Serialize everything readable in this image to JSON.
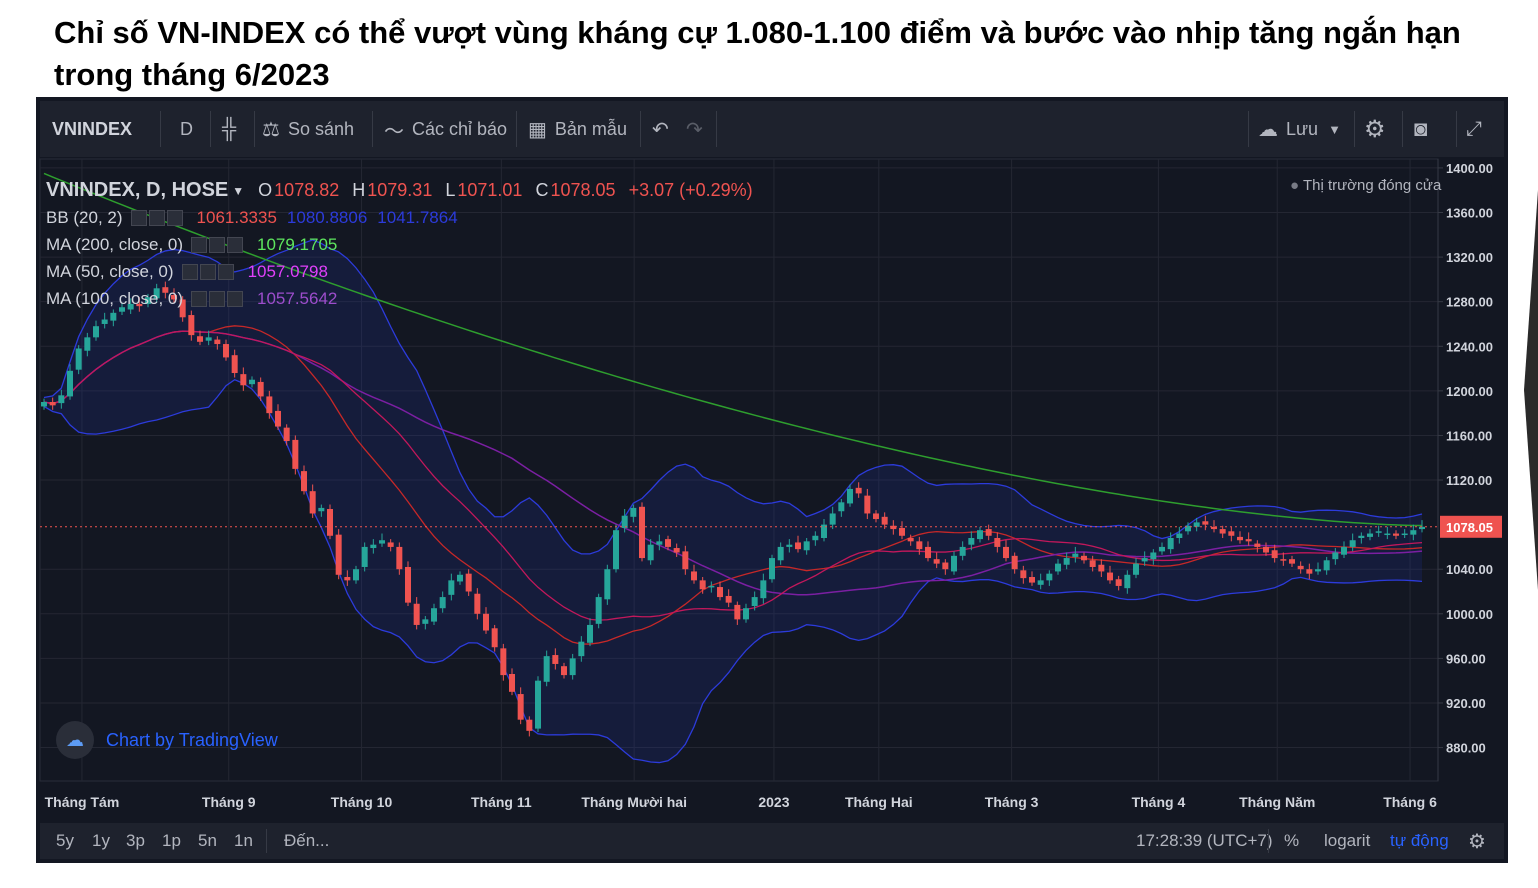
{
  "headline": "Chỉ số VN-INDEX có thể vượt vùng kháng cự 1.080-1.100 điểm và bước vào nhịp tăng ngắn hạn trong tháng 6/2023",
  "toolbar": {
    "symbol": "VNINDEX",
    "interval": "D",
    "compare_label": "So sánh",
    "indicators_label": "Các chỉ báo",
    "templates_label": "Bản mẫu",
    "save_label": "Lưu"
  },
  "legend": {
    "main_title": "VNINDEX, D, HOSE",
    "open_key": "O",
    "open": "1078.82",
    "high_key": "H",
    "high": "1079.31",
    "low_key": "L",
    "low": "1071.01",
    "close_key": "C",
    "close": "1078.05",
    "change": "+3.07 (+0.29%)",
    "bb_label": "BB (20, 2)",
    "bb_values": [
      "1061.3335",
      "1080.8806",
      "1041.7864"
    ],
    "ma200_label": "MA (200, close, 0)",
    "ma200_value": "1079.1705",
    "ma50_label": "MA (50, close, 0)",
    "ma50_value": "1057.0798",
    "ma100_label": "MA (100, close, 0)",
    "ma100_value": "1057.5642"
  },
  "market_status": "Thị trường đóng cửa",
  "watermark": "Chart by TradingView",
  "bottom": {
    "ranges": [
      "5y",
      "1y",
      "3p",
      "1p",
      "5n",
      "1n"
    ],
    "goto": "Đến...",
    "time": "17:28:39 (UTC+7)",
    "percent": "%",
    "log": "logarit",
    "auto": "tự động"
  },
  "colors": {
    "up": "#26a69a",
    "down": "#ef5350",
    "ma200": "#2e9e2e",
    "ma50": "#c2185b",
    "ma100": "#7b1fa2",
    "bb_band": "#2c3bdb",
    "bb_basis": "#c62828",
    "price_tag": "#ef5350"
  },
  "chart_data": {
    "type": "candlestick",
    "title": "VNINDEX, D, HOSE",
    "y_ticks": [
      1400,
      1360,
      1320,
      1280,
      1240,
      1200,
      1160,
      1120,
      1078.05,
      1040,
      1000,
      960,
      920,
      880
    ],
    "ylim": [
      850,
      1408
    ],
    "x_ticks": [
      "Tháng Tám",
      "Tháng 9",
      "Tháng 10",
      "Tháng 11",
      "Tháng Mười hai",
      "2023",
      "Tháng Hai",
      "Tháng 3",
      "Tháng 4",
      "Tháng Năm",
      "Tháng 6"
    ],
    "current_price": 1078.05,
    "closes": [
      1190,
      1187,
      1196,
      1218,
      1238,
      1248,
      1258,
      1264,
      1270,
      1275,
      1278,
      1276,
      1284,
      1292,
      1288,
      1282,
      1266,
      1250,
      1244,
      1248,
      1242,
      1230,
      1216,
      1205,
      1210,
      1195,
      1180,
      1168,
      1155,
      1130,
      1110,
      1090,
      1095,
      1070,
      1035,
      1030,
      1040,
      1060,
      1062,
      1066,
      1060,
      1040,
      1010,
      990,
      995,
      1005,
      1015,
      1030,
      1035,
      1020,
      1000,
      985,
      970,
      945,
      930,
      905,
      895,
      940,
      962,
      955,
      945,
      960,
      975,
      990,
      1015,
      1040,
      1075,
      1088,
      1095,
      1050,
      1062,
      1065,
      1060,
      1055,
      1040,
      1030,
      1022,
      1025,
      1015,
      1010,
      995,
      1005,
      1015,
      1030,
      1050,
      1060,
      1062,
      1058,
      1065,
      1070,
      1080,
      1090,
      1100,
      1112,
      1108,
      1090,
      1085,
      1080,
      1076,
      1070,
      1065,
      1058,
      1050,
      1045,
      1040,
      1052,
      1060,
      1068,
      1075,
      1070,
      1060,
      1050,
      1040,
      1032,
      1028,
      1030,
      1036,
      1045,
      1050,
      1054,
      1048,
      1042,
      1038,
      1030,
      1025,
      1035,
      1045,
      1050,
      1055,
      1060,
      1068,
      1072,
      1079,
      1082,
      1080,
      1076,
      1072,
      1070,
      1066,
      1065,
      1060,
      1055,
      1050,
      1048,
      1045,
      1040,
      1036,
      1040,
      1048,
      1055,
      1060,
      1066,
      1070,
      1072,
      1074,
      1072,
      1070,
      1072,
      1075.0,
      1078.05
    ],
    "ma200_endpoints": [
      1395,
      1079.17
    ],
    "ma50_last": 1057.08,
    "ma100_last": 1057.56,
    "bb_last": {
      "basis": 1061.33,
      "upper": 1080.88,
      "lower": 1041.79
    }
  }
}
